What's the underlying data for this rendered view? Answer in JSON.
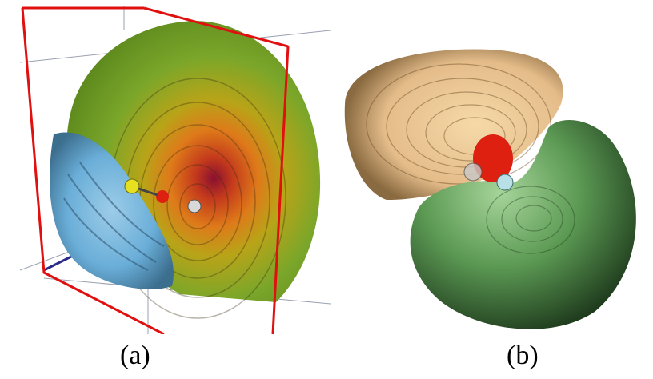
{
  "figure": {
    "panels": [
      {
        "id": "a",
        "label": "(a)",
        "description_icon": "volume-render-molecule-cross-section"
      },
      {
        "id": "b",
        "label": "(b)",
        "description_icon": "isosurface-orbital-lobes"
      }
    ]
  },
  "colors": {
    "bounding_box": "#e01010",
    "green_lobe": "#6a9a2a",
    "orange_core": "#d86018",
    "blue_lobe": "#6aaed8",
    "tan_lobe": "#e4bc8a",
    "green_iso": "#5c9a54",
    "oxygen_red": "#dd2010",
    "hydrogen_yellow": "#e6e020",
    "light_grey": "#c8c8c8"
  }
}
